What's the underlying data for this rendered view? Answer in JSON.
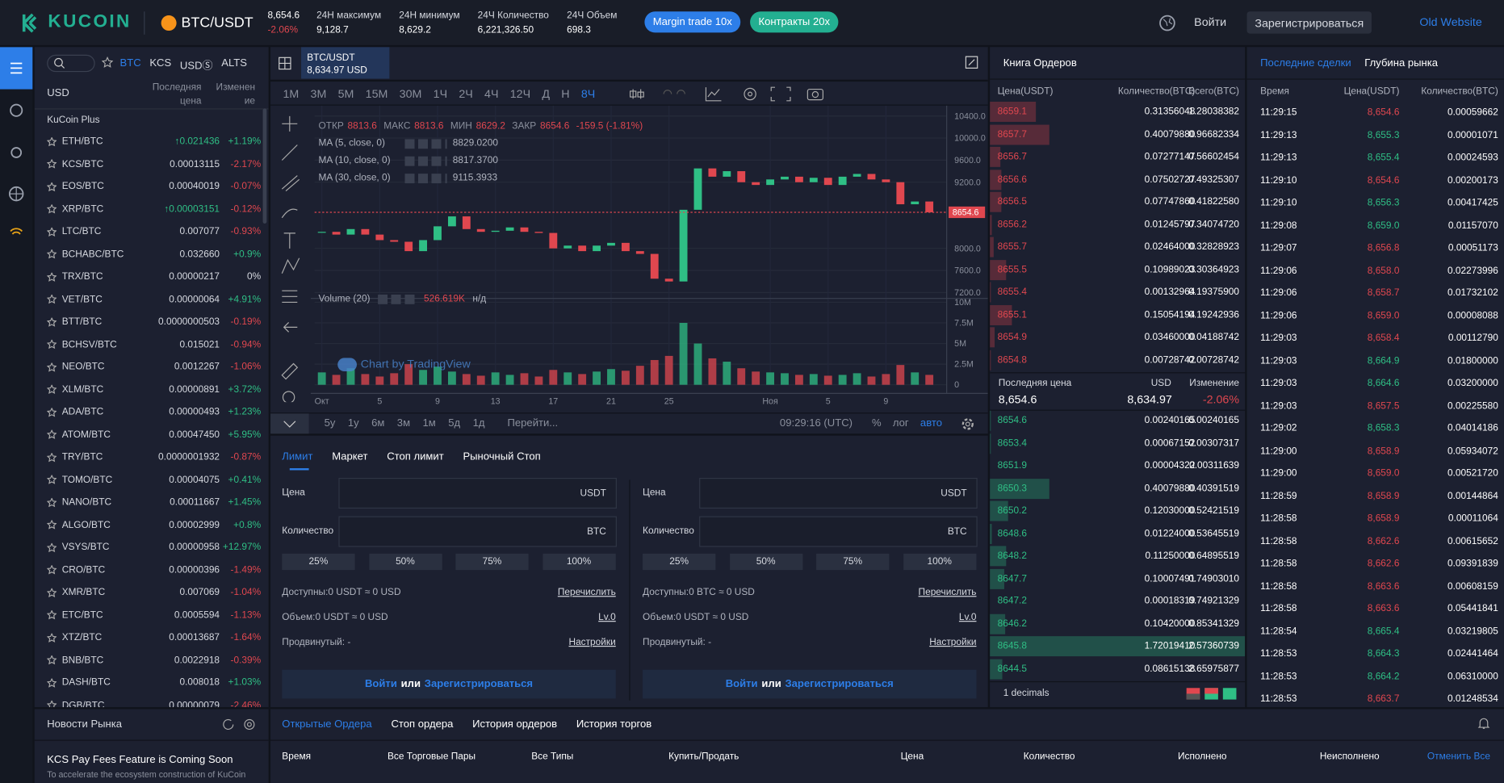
{
  "header": {
    "logo": "KUCOIN",
    "pair": "BTC/USDT",
    "price": "8,654.6",
    "change": "-2.06%",
    "stats": [
      {
        "label": "24Н максимум",
        "value": "9,128.7"
      },
      {
        "label": "24Н минимум",
        "value": "8,629.2"
      },
      {
        "label": "24Ч Количество",
        "value": "6,221,326.50"
      },
      {
        "label": "24Ч Объем",
        "value": "698.3"
      }
    ],
    "margin": "Margin trade 10x",
    "contracts": "Контракты 20x",
    "login": "Войти",
    "register": "Зарегистрироваться",
    "old": "Old Website"
  },
  "markets": {
    "tabs": [
      "BTC",
      "KCS",
      "USDⓈ",
      "ALTS"
    ],
    "currency": "USD",
    "price_col": "Последняя цена",
    "change_col": "Изменение",
    "section": "KuCoin Plus",
    "rows": [
      [
        "ETH/BTC",
        "↑0.021436",
        "+1.19%"
      ],
      [
        "KCS/BTC",
        "0.00013115",
        "-2.17%"
      ],
      [
        "EOS/BTC",
        "0.00040019",
        "-0.07%"
      ],
      [
        "XRP/BTC",
        "↑0.00003151",
        "-0.12%"
      ],
      [
        "LTC/BTC",
        "0.007077",
        "-0.93%"
      ],
      [
        "BCHABC/BTC",
        "0.032660",
        "+0.9%"
      ],
      [
        "TRX/BTC",
        "0.00000217",
        "0%"
      ],
      [
        "VET/BTC",
        "0.00000064",
        "+4.91%"
      ],
      [
        "BTT/BTC",
        "0.0000000503",
        "-0.19%"
      ],
      [
        "BCHSV/BTC",
        "0.015021",
        "-0.94%"
      ],
      [
        "NEO/BTC",
        "0.0012267",
        "-1.06%"
      ],
      [
        "XLM/BTC",
        "0.00000891",
        "+3.72%"
      ],
      [
        "ADA/BTC",
        "0.00000493",
        "+1.23%"
      ],
      [
        "ATOM/BTC",
        "0.00047450",
        "+5.95%"
      ],
      [
        "TRY/BTC",
        "0.0000001932",
        "-0.87%"
      ],
      [
        "TOMO/BTC",
        "0.00004075",
        "+0.41%"
      ],
      [
        "NANO/BTC",
        "0.00011667",
        "+1.45%"
      ],
      [
        "ALGO/BTC",
        "0.00002999",
        "+0.8%"
      ],
      [
        "VSYS/BTC",
        "0.00000958",
        "+12.97%"
      ],
      [
        "CRO/BTC",
        "0.00000396",
        "-1.49%"
      ],
      [
        "XMR/BTC",
        "0.007069",
        "-1.04%"
      ],
      [
        "ETC/BTC",
        "0.0005594",
        "-1.13%"
      ],
      [
        "XTZ/BTC",
        "0.00013687",
        "-1.64%"
      ],
      [
        "BNB/BTC",
        "0.0022918",
        "-0.39%"
      ],
      [
        "DASH/BTC",
        "0.008018",
        "+1.03%"
      ],
      [
        "DGB/BTC",
        "0.00000079",
        "-2.46%"
      ]
    ]
  },
  "news": {
    "title": "Новости Рынка",
    "headline": "KCS Pay Fees Feature is Coming Soon",
    "text": "To accelerate the ecosystem construction of KuCoin"
  },
  "chart_tab": {
    "pair": "BTC/USDT",
    "price": "8,634.97 USD"
  },
  "intervals": [
    "1M",
    "3M",
    "5M",
    "15M",
    "30M",
    "1Ч",
    "2Ч",
    "4Ч",
    "12Ч",
    "Д",
    "Н",
    "8Ч"
  ],
  "active_interval": 11,
  "chart_legend": {
    "ohlc": [
      [
        "ОТКР",
        "8813.6"
      ],
      [
        "МАКС",
        "8813.6"
      ],
      [
        "МИН",
        "8629.2"
      ],
      [
        "ЗАКР",
        "8654.6"
      ]
    ],
    "change": "-159.5 (-1.81%)",
    "ma": [
      [
        "MA (5, close, 0)",
        "8829.0200"
      ],
      [
        "MA (10, close, 0)",
        "8817.3700"
      ],
      [
        "MA (30, close, 0)",
        "9115.3933"
      ]
    ],
    "volume": "Volume (20)",
    "volume_value": "526.619K",
    "volume_na": "н/д",
    "watermark": "Chart by TradingView"
  },
  "chart_data": {
    "type": "candlestick",
    "close": [
      8300,
      8250,
      8350,
      8250,
      8150,
      8120,
      7950,
      8150,
      8400,
      8580,
      8350,
      8300,
      8320,
      8380,
      8300,
      8280,
      8000,
      8050,
      7950,
      8050,
      8100,
      7950,
      7900,
      7450,
      7400,
      8700,
      9450,
      9300,
      9400,
      9200,
      9150,
      9250,
      9300,
      9200,
      9280,
      9150,
      9300,
      9350,
      9250,
      9200,
      8800,
      8850,
      8654.6
    ],
    "volume": [
      1500000,
      1200000,
      2000000,
      1300000,
      1000000,
      1400000,
      2500000,
      1800000,
      2200000,
      1600000,
      1300000,
      1100000,
      1500000,
      1200000,
      1400000,
      1000000,
      1800000,
      1500000,
      1300000,
      1600000,
      1900000,
      1700000,
      2300000,
      3000000,
      3500000,
      7500000,
      5000000,
      3200000,
      2800000,
      2000000,
      1600000,
      1500000,
      1400000,
      1200000,
      1300000,
      1100000,
      1200000,
      1400000,
      1000000,
      1300000,
      2400000,
      1500000,
      1200000
    ],
    "xlim": [
      -0.5,
      43.2
    ],
    "xticks": [
      {
        "value": 0,
        "label": "Окт"
      },
      {
        "value": 4,
        "label": "5"
      },
      {
        "value": 8,
        "label": "9"
      },
      {
        "value": 12,
        "label": "13"
      },
      {
        "value": 16,
        "label": "17"
      },
      {
        "value": 20,
        "label": "21"
      },
      {
        "value": 24,
        "label": "25"
      },
      {
        "value": 31,
        "label": "Ноя"
      },
      {
        "value": 35,
        "label": "5"
      },
      {
        "value": 39,
        "label": "9"
      }
    ],
    "ylim": [
      7110,
      10590
    ],
    "yticks": [
      {
        "value": 10400,
        "label": "10400.0"
      },
      {
        "value": 10000,
        "label": "10000.0"
      },
      {
        "value": 9600,
        "label": "9600.0"
      },
      {
        "value": 9200,
        "label": "9200.0"
      },
      {
        "value": 8000,
        "label": "8000.0"
      },
      {
        "value": 7600,
        "label": "7600.0"
      },
      {
        "value": 7200,
        "label": "7200.0"
      }
    ],
    "volume_ylim": [
      0,
      10350000
    ],
    "volume_yticks": [
      {
        "value": 10000000,
        "label": "10M"
      },
      {
        "value": 7500000,
        "label": "7.5M"
      },
      {
        "value": 5000000,
        "label": "5M"
      },
      {
        "value": 2500000,
        "label": "2.5M"
      },
      0
    ],
    "last_price": 8654.6,
    "up_color": "#2fbf85",
    "down_color": "#e0474f",
    "grid": true
  },
  "chart_toolbar": {
    "ranges": [
      "5y",
      "1y",
      "6м",
      "3м",
      "1м",
      "5д",
      "1д"
    ],
    "goto": "Перейти...",
    "time": "09:29:16 (UTC)",
    "options": [
      "%",
      "лог",
      "авто"
    ]
  },
  "order_form": {
    "tabs": [
      "Лимит",
      "Маркет",
      "Стоп лимит",
      "Рыночный Стоп"
    ],
    "panels": [
      {
        "price_label": "Цена",
        "price_unit": "USDT",
        "qty_label": "Количество",
        "qty_unit": "BTC",
        "percents": [
          "25%",
          "50%",
          "75%",
          "100%"
        ],
        "available": "Доступны:0 USDT ≈ 0 USD",
        "transfer": "Перечислить",
        "volume": "Объем:0 USDT ≈ 0 USD",
        "level": "Lv.0",
        "advanced": "Продвинутый: -",
        "settings": "Настройки",
        "login": "Войти",
        "or": "или",
        "register": "Зарегистрироваться"
      },
      {
        "price_label": "Цена",
        "price_unit": "USDT",
        "qty_label": "Количество",
        "qty_unit": "BTC",
        "percents": [
          "25%",
          "50%",
          "75%",
          "100%"
        ],
        "available": "Доступны:0 BTC ≈ 0 USD",
        "transfer": "Перечислить",
        "volume": "Объем:0 USDT ≈ 0 USD",
        "level": "Lv.0",
        "advanced": "Продвинутый: -",
        "settings": "Настройки",
        "login": "Войти",
        "or": "или",
        "register": "Зарегистрироваться"
      }
    ]
  },
  "order_book": {
    "title": "Книга Ордеров",
    "columns": [
      "Цена(USDT)",
      "Количество(BTC)",
      "Всего(BTC)"
    ],
    "asks": [
      [
        8659.1,
        0.31356048,
        1.28038382
      ],
      [
        8657.7,
        0.4007988,
        0.96682334
      ],
      [
        8656.7,
        0.07277147,
        0.56602454
      ],
      [
        8656.6,
        0.07502727,
        0.49325307
      ],
      [
        8656.5,
        0.0774786,
        0.4182258
      ],
      [
        8656.2,
        0.01245797,
        0.3407472
      ],
      [
        8655.7,
        0.02464,
        0.32828923
      ],
      [
        8655.5,
        0.10989023,
        0.30364923
      ],
      [
        8655.4,
        0.00132964,
        0.193759
      ],
      [
        8655.1,
        0.15054194,
        0.19242936
      ],
      [
        8654.9,
        0.0346,
        0.04188742
      ],
      [
        8654.8,
        0.00728742,
        0.00728742
      ]
    ],
    "ask_labels": [
      [
        "8659.1",
        "0.31356048",
        "1.28038382"
      ],
      [
        "8657.7",
        "0.40079880",
        "0.96682334"
      ],
      [
        "8656.7",
        "0.07277147",
        "0.56602454"
      ],
      [
        "8656.6",
        "0.07502727",
        "0.49325307"
      ],
      [
        "8656.5",
        "0.07747860",
        "0.41822580"
      ],
      [
        "8656.2",
        "0.01245797",
        "0.34074720"
      ],
      [
        "8655.7",
        "0.02464000",
        "0.32828923"
      ],
      [
        "8655.5",
        "0.10989023",
        "0.30364923"
      ],
      [
        "8655.4",
        "0.00132964",
        "0.19375900"
      ],
      [
        "8655.1",
        "0.15054194",
        "0.19242936"
      ],
      [
        "8654.9",
        "0.03460000",
        "0.04188742"
      ],
      [
        "8654.8",
        "0.00728742",
        "0.00728742"
      ]
    ],
    "last_label": "Последняя цена",
    "last_value": "8,654.6",
    "usd_label": "USD",
    "usd_value": "8,634.97",
    "change_label": "Изменение",
    "change_value": "-2.06%",
    "bids": [
      [
        8654.6,
        0.00240165,
        0.00240165
      ],
      [
        8653.4,
        0.00067152,
        0.00307317
      ],
      [
        8651.9,
        4.322e-05,
        0.00311639
      ],
      [
        8650.3,
        0.4007988,
        0.40391519
      ],
      [
        8650.2,
        0.1203,
        0.52421519
      ],
      [
        8648.6,
        0.01224,
        0.53645519
      ],
      [
        8648.2,
        0.1125,
        0.64895519
      ],
      [
        8647.7,
        0.10007491,
        0.7490301
      ],
      [
        8647.2,
        0.00018319,
        0.74921329
      ],
      [
        8646.2,
        0.1042,
        0.85341329
      ],
      [
        8645.8,
        1.7201941,
        2.57360739
      ],
      [
        8644.5,
        0.08615138,
        2.65975877
      ]
    ],
    "bid_labels": [
      [
        "8654.6",
        "0.00240165",
        "0.00240165"
      ],
      [
        "8653.4",
        "0.00067152",
        "0.00307317"
      ],
      [
        "8651.9",
        "0.00004322",
        "0.00311639"
      ],
      [
        "8650.3",
        "0.40079880",
        "0.40391519"
      ],
      [
        "8650.2",
        "0.12030000",
        "0.52421519"
      ],
      [
        "8648.6",
        "0.01224000",
        "0.53645519"
      ],
      [
        "8648.2",
        "0.11250000",
        "0.64895519"
      ],
      [
        "8647.7",
        "0.10007491",
        "0.74903010"
      ],
      [
        "8647.2",
        "0.00018319",
        "0.74921329"
      ],
      [
        "8646.2",
        "0.10420000",
        "0.85341329"
      ],
      [
        "8645.8",
        "1.72019410",
        "2.57360739"
      ],
      [
        "8644.5",
        "0.08615138",
        "2.65975877"
      ]
    ],
    "decimals": "1 decimals",
    "ask_color": "#e0474f",
    "bid_color": "#2fbf85"
  },
  "trades": {
    "tabs": [
      "Последние сделки",
      "Глубина рынка"
    ],
    "columns": [
      "Время",
      "Цена(USDT)",
      "Количество(BTC)"
    ],
    "rows": [
      [
        "11:29:15",
        "8,654.6",
        "0.00059662",
        "#e0474f"
      ],
      [
        "11:29:13",
        "8,655.3",
        "0.00001071",
        "#2fbf85"
      ],
      [
        "11:29:13",
        "8,655.4",
        "0.00024593",
        "#2fbf85"
      ],
      [
        "11:29:10",
        "8,654.6",
        "0.00200173",
        "#e0474f"
      ],
      [
        "11:29:10",
        "8,656.3",
        "0.00417425",
        "#2fbf85"
      ],
      [
        "11:29:08",
        "8,659.0",
        "0.01157070",
        "#2fbf85"
      ],
      [
        "11:29:07",
        "8,656.8",
        "0.00051173",
        "#e0474f"
      ],
      [
        "11:29:06",
        "8,658.0",
        "0.02273996",
        "#e0474f"
      ],
      [
        "11:29:06",
        "8,658.7",
        "0.01732102",
        "#e0474f"
      ],
      [
        "11:29:06",
        "8,659.0",
        "0.00008088",
        "#e0474f"
      ],
      [
        "11:29:03",
        "8,658.4",
        "0.00112790",
        "#e0474f"
      ],
      [
        "11:29:03",
        "8,664.9",
        "0.01800000",
        "#2fbf85"
      ],
      [
        "11:29:03",
        "8,664.6",
        "0.03200000",
        "#2fbf85"
      ],
      [
        "11:29:03",
        "8,657.5",
        "0.00225580",
        "#e0474f"
      ],
      [
        "11:29:02",
        "8,658.3",
        "0.04014186",
        "#2fbf85"
      ],
      [
        "11:29:00",
        "8,658.9",
        "0.05934072",
        "#e0474f"
      ],
      [
        "11:29:00",
        "8,659.0",
        "0.00521720",
        "#e0474f"
      ],
      [
        "11:28:59",
        "8,658.9",
        "0.00144864",
        "#e0474f"
      ],
      [
        "11:28:58",
        "8,658.9",
        "0.00011064",
        "#e0474f"
      ],
      [
        "11:28:58",
        "8,662.6",
        "0.00615652",
        "#e0474f"
      ],
      [
        "11:28:58",
        "8,662.6",
        "0.09391839",
        "#e0474f"
      ],
      [
        "11:28:58",
        "8,663.6",
        "0.00608159",
        "#e0474f"
      ],
      [
        "11:28:58",
        "8,663.6",
        "0.05441841",
        "#e0474f"
      ],
      [
        "11:28:54",
        "8,665.4",
        "0.03219805",
        "#2fbf85"
      ],
      [
        "11:28:53",
        "8,664.3",
        "0.02441464",
        "#2fbf85"
      ],
      [
        "11:28:53",
        "8,664.2",
        "0.06310000",
        "#2fbf85"
      ],
      [
        "11:28:53",
        "8,663.7",
        "0.01248534",
        "#e0474f"
      ]
    ]
  },
  "orders": {
    "tabs": [
      "Открытые Ордера",
      "Стоп ордера",
      "История ордеров",
      "История торгов"
    ],
    "columns": [
      "Время",
      "Все Торговые Пары",
      "Все Типы",
      "Купить/Продать",
      "Цена",
      "Количество",
      "Исполнено",
      "Неисполнено"
    ],
    "cancel_all": "Отменить Все"
  }
}
